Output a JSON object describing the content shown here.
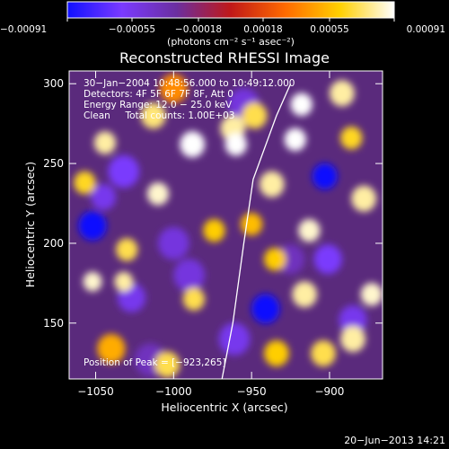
{
  "chart_data": {
    "type": "heatmap",
    "title": "Reconstructed RHESSI Image",
    "xlabel": "Heliocentric X (arcsec)",
    "ylabel": "Heliocentric Y (arcsec)",
    "xlim": [
      -1067,
      -866
    ],
    "ylim": [
      115,
      308
    ],
    "xticks": [
      -1050,
      -1000,
      -950,
      -900
    ],
    "xtick_labels": [
      "−1050",
      "−1000",
      "−950",
      "−900"
    ],
    "yticks": [
      150,
      200,
      250,
      300
    ],
    "ytick_labels": [
      "150",
      "200",
      "250",
      "300"
    ],
    "colorbar": {
      "ticks": [
        -0.00091,
        -0.00055,
        -0.00018,
        0.00018,
        0.00055,
        0.00091
      ],
      "tick_labels": [
        "−0.00091",
        "−0.00055",
        "−0.00018",
        "0.00018",
        "0.00055",
        "0.00091"
      ],
      "label": "(photons cm⁻² s⁻¹ asec⁻²)",
      "range": [
        -0.00091,
        0.00091
      ],
      "colors": [
        "#1010ff",
        "#7a3aff",
        "#6b2fa0",
        "#c01818",
        "#ff6a00",
        "#ffd000",
        "#ffffff"
      ]
    },
    "annotations": [
      "30−Jan−2004 10:48:56.000 to 10:49:12.000",
      "Detectors: 4F 5F 6F 7F 8F, Att 0",
      "Energy Range: 12.0 − 25.0 keV",
      "Clean     Total counts: 1.00E+03"
    ],
    "peak_label": "Position of Peak = [−923,265]",
    "limb_points": [
      [
        -969,
        115
      ],
      [
        -962,
        150
      ],
      [
        -955,
        200
      ],
      [
        -949,
        240
      ],
      [
        -934,
        280
      ],
      [
        -925,
        300
      ]
    ],
    "blobs": [
      {
        "x": -1052,
        "y": 211,
        "v": -0.00091,
        "r": 9
      },
      {
        "x": -1045,
        "y": 229,
        "v": -0.00055,
        "r": 8
      },
      {
        "x": -1032,
        "y": 245,
        "v": -0.0006,
        "r": 10
      },
      {
        "x": -1027,
        "y": 166,
        "v": -0.00055,
        "r": 9
      },
      {
        "x": -1000,
        "y": 200,
        "v": -0.0005,
        "r": 10
      },
      {
        "x": -990,
        "y": 180,
        "v": -0.0005,
        "r": 10
      },
      {
        "x": -961,
        "y": 140,
        "v": -0.00055,
        "r": 10
      },
      {
        "x": -941,
        "y": 159,
        "v": -0.00091,
        "r": 9
      },
      {
        "x": -903,
        "y": 242,
        "v": -0.00091,
        "r": 8
      },
      {
        "x": -901,
        "y": 190,
        "v": -0.0006,
        "r": 9
      },
      {
        "x": -925,
        "y": 190,
        "v": -0.0004,
        "r": 9
      },
      {
        "x": -955,
        "y": 287,
        "v": -0.0005,
        "r": 10
      },
      {
        "x": -885,
        "y": 152,
        "v": -0.00055,
        "r": 9
      },
      {
        "x": -1015,
        "y": 127,
        "v": -0.0004,
        "r": 10
      },
      {
        "x": -988,
        "y": 262,
        "v": 0.00091,
        "r": 8
      },
      {
        "x": -1013,
        "y": 280,
        "v": 0.00075,
        "r": 8
      },
      {
        "x": -1044,
        "y": 263,
        "v": 0.0008,
        "r": 7
      },
      {
        "x": -1057,
        "y": 238,
        "v": 0.00065,
        "r": 7
      },
      {
        "x": -1030,
        "y": 196,
        "v": 0.0007,
        "r": 7
      },
      {
        "x": -1052,
        "y": 176,
        "v": 0.00085,
        "r": 6
      },
      {
        "x": -1032,
        "y": 176,
        "v": 0.0008,
        "r": 6
      },
      {
        "x": -1010,
        "y": 231,
        "v": 0.00085,
        "r": 7
      },
      {
        "x": -987,
        "y": 165,
        "v": 0.0007,
        "r": 7
      },
      {
        "x": -1004,
        "y": 124,
        "v": 0.0007,
        "r": 8
      },
      {
        "x": -1040,
        "y": 134,
        "v": 0.0005,
        "r": 9
      },
      {
        "x": -962,
        "y": 272,
        "v": 0.0008,
        "r": 8
      },
      {
        "x": -974,
        "y": 208,
        "v": 0.0006,
        "r": 7
      },
      {
        "x": -960,
        "y": 262,
        "v": 0.00091,
        "r": 7
      },
      {
        "x": -948,
        "y": 280,
        "v": 0.0007,
        "r": 8
      },
      {
        "x": -937,
        "y": 237,
        "v": 0.0008,
        "r": 8
      },
      {
        "x": -922,
        "y": 265,
        "v": 0.00091,
        "r": 7
      },
      {
        "x": -918,
        "y": 287,
        "v": 0.00091,
        "r": 7
      },
      {
        "x": -892,
        "y": 294,
        "v": 0.0008,
        "r": 8
      },
      {
        "x": -886,
        "y": 266,
        "v": 0.00065,
        "r": 7
      },
      {
        "x": -878,
        "y": 228,
        "v": 0.0008,
        "r": 8
      },
      {
        "x": -913,
        "y": 208,
        "v": 0.00085,
        "r": 7
      },
      {
        "x": -935,
        "y": 190,
        "v": 0.0006,
        "r": 7
      },
      {
        "x": -916,
        "y": 168,
        "v": 0.0008,
        "r": 8
      },
      {
        "x": -873,
        "y": 168,
        "v": 0.00085,
        "r": 7
      },
      {
        "x": -885,
        "y": 140,
        "v": 0.0008,
        "r": 8
      },
      {
        "x": -904,
        "y": 131,
        "v": 0.0007,
        "r": 8
      },
      {
        "x": -934,
        "y": 131,
        "v": 0.0006,
        "r": 8
      },
      {
        "x": -950,
        "y": 212,
        "v": 0.00055,
        "r": 7
      },
      {
        "x": -1000,
        "y": 297,
        "v": 0.0004,
        "r": 9
      }
    ]
  },
  "footer": {
    "timestamp": "20−Jun−2013 14:21"
  }
}
